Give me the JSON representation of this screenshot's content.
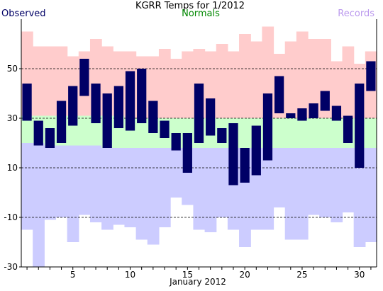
{
  "chart_data": {
    "type": "bar",
    "title": "KGRR Temps for 1/2012",
    "xlabel": "January 2012",
    "ylabel": "",
    "ylim": [
      -30,
      70
    ],
    "yticks": [
      -30,
      -10,
      10,
      30,
      50
    ],
    "gridlines_y": [
      -10,
      10,
      30,
      50
    ],
    "xticks": [
      5,
      10,
      15,
      20,
      25,
      30
    ],
    "days": [
      1,
      2,
      3,
      4,
      5,
      6,
      7,
      8,
      9,
      10,
      11,
      12,
      13,
      14,
      15,
      16,
      17,
      18,
      19,
      20,
      21,
      22,
      23,
      24,
      25,
      26,
      27,
      28,
      29,
      30,
      31
    ],
    "legend": {
      "observed": "Observed",
      "normals": "Normals",
      "records": "Records"
    },
    "colors": {
      "observed": "#000066",
      "normals_legend": "#008800",
      "records_legend": "#bb99ee",
      "record_band": "#ffcccc",
      "normal_band": "#ccffcc",
      "record_low_band": "#ccccff",
      "grid": "#000000"
    },
    "series": [
      {
        "name": "Observed",
        "highs": [
          44,
          29,
          26,
          37,
          43,
          54,
          44,
          40,
          43,
          49,
          50,
          37,
          29,
          24,
          24,
          44,
          38,
          26,
          28,
          18,
          27,
          40,
          47,
          32,
          34,
          36,
          41,
          35,
          31,
          44,
          53
        ],
        "lows": [
          29,
          19,
          18,
          20,
          27,
          39,
          28,
          18,
          26,
          25,
          28,
          24,
          22,
          17,
          8,
          20,
          23,
          20,
          3,
          4,
          7,
          13,
          32,
          30,
          29,
          30,
          33,
          29,
          20,
          10,
          41
        ]
      },
      {
        "name": "Normals",
        "highs": [
          31,
          31,
          31,
          31,
          31,
          31,
          31,
          31,
          31,
          30,
          30,
          30,
          30,
          30,
          30,
          30,
          30,
          30,
          30,
          30,
          30,
          30,
          30,
          30,
          30,
          30,
          30,
          30,
          30,
          30,
          30
        ],
        "lows": [
          20,
          20,
          19,
          19,
          19,
          19,
          19,
          18,
          18,
          18,
          18,
          18,
          18,
          18,
          18,
          18,
          18,
          18,
          18,
          18,
          18,
          18,
          18,
          18,
          18,
          18,
          18,
          18,
          18,
          18,
          18
        ]
      },
      {
        "name": "Records",
        "highs": [
          65,
          59,
          59,
          59,
          55,
          57,
          62,
          59,
          57,
          57,
          55,
          55,
          58,
          54,
          57,
          58,
          57,
          60,
          57,
          64,
          61,
          67,
          56,
          61,
          65,
          62,
          62,
          53,
          59,
          52,
          57
        ],
        "lows": [
          -15,
          -30,
          -11,
          -10,
          -20,
          -9,
          -12,
          -15,
          -13,
          -14,
          -19,
          -21,
          -14,
          -2,
          -5,
          -15,
          -16,
          -10,
          -15,
          -22,
          -15,
          -15,
          -6,
          -19,
          -19,
          -9,
          -10,
          -12,
          -8,
          -22,
          -20
        ]
      }
    ]
  }
}
